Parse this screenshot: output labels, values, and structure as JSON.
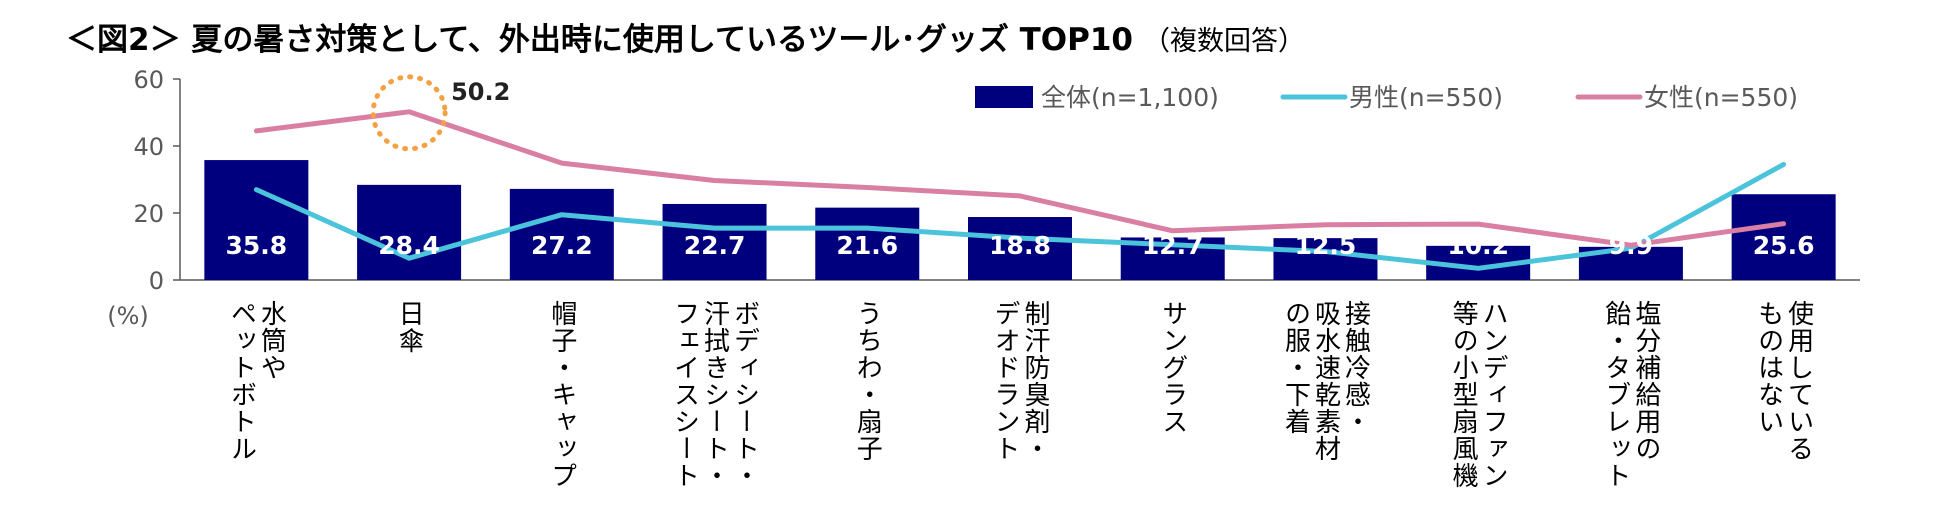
{
  "title": "＜図2＞ 夏の暑さ対策として、外出時に使用しているツール･グッズ TOP10",
  "title_note": "（複数回答）",
  "chart_data": {
    "type": "bar",
    "ylim": [
      0,
      60
    ],
    "yticks": [
      "60",
      "40",
      "20",
      "0"
    ],
    "ytick_values": [
      60,
      40,
      20,
      0
    ],
    "y_unit": "(%)",
    "grid": false,
    "legend_position": "top-right",
    "categories": [
      [
        "水筒や",
        "ペットボトル"
      ],
      [
        "日傘"
      ],
      [
        "帽子・キャップ"
      ],
      [
        "ボディシート・",
        "汗拭きシート・",
        "フェイスシート"
      ],
      [
        "うちわ・扇子"
      ],
      [
        "制汗防臭剤・",
        "デオドラント"
      ],
      [
        "サングラス"
      ],
      [
        "接触冷感・",
        "吸水速乾素材",
        "の服・下着"
      ],
      [
        "ハンディファン",
        "等の小型扇風機"
      ],
      [
        "塩分補給用の",
        "飴・タブレット"
      ],
      [
        "使用している",
        "ものはない"
      ]
    ],
    "series": [
      {
        "name": "全体(n=1,100)",
        "type": "bar",
        "color": "#00007F",
        "values": [
          35.8,
          28.4,
          27.2,
          22.7,
          21.6,
          18.8,
          12.7,
          12.5,
          10.2,
          9.9,
          25.6
        ],
        "labels": [
          "35.8",
          "28.4",
          "27.2",
          "22.7",
          "21.6",
          "18.8",
          "12.7",
          "12.5",
          "10.2",
          "9.9",
          "25.6"
        ]
      },
      {
        "name": "男性(n=550)",
        "type": "line",
        "color": "#4BC3DB",
        "values": [
          27,
          6.5,
          19.5,
          15.5,
          15.5,
          12.5,
          10.5,
          8.5,
          3.5,
          9.5,
          34.5
        ]
      },
      {
        "name": "女性(n=550)",
        "type": "line",
        "color": "#D97FA3",
        "values": [
          44.5,
          50.2,
          34.9,
          29.7,
          27.6,
          25.1,
          14.7,
          16.5,
          16.7,
          10.4,
          16.8
        ]
      }
    ],
    "annotation": {
      "text": "50.2",
      "series": "女性(n=550)",
      "index": 1
    }
  }
}
